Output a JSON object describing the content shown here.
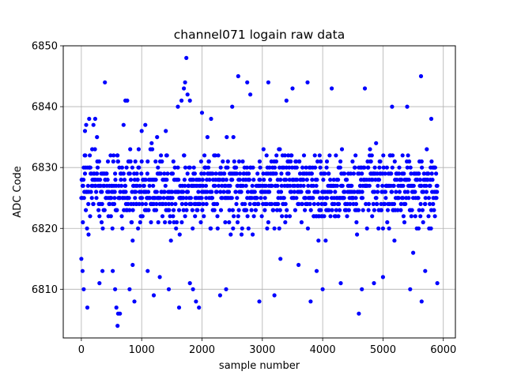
{
  "chart_data": {
    "type": "scatter",
    "title": "channel071 logain raw data",
    "xlabel": "sample number",
    "ylabel": "ADC Code",
    "xlim": [
      -300,
      6200
    ],
    "ylim": [
      6802,
      6850
    ],
    "xticks": [
      0,
      1000,
      2000,
      3000,
      4000,
      5000,
      6000
    ],
    "yticks": [
      6810,
      6820,
      6830,
      6840,
      6850
    ],
    "grid": true,
    "marker_color": "#0000ff",
    "band": {
      "x_start": 0,
      "x_end": 5900,
      "core_low": 6819,
      "core_high": 6834
    },
    "outliers": [
      {
        "x": 0,
        "y": 6815
      },
      {
        "x": 20,
        "y": 6813
      },
      {
        "x": 40,
        "y": 6810
      },
      {
        "x": 60,
        "y": 6836
      },
      {
        "x": 80,
        "y": 6837
      },
      {
        "x": 100,
        "y": 6807
      },
      {
        "x": 130,
        "y": 6838
      },
      {
        "x": 200,
        "y": 6837
      },
      {
        "x": 230,
        "y": 6838
      },
      {
        "x": 260,
        "y": 6835
      },
      {
        "x": 300,
        "y": 6811
      },
      {
        "x": 350,
        "y": 6813
      },
      {
        "x": 390,
        "y": 6844
      },
      {
        "x": 520,
        "y": 6813
      },
      {
        "x": 560,
        "y": 6810
      },
      {
        "x": 580,
        "y": 6807
      },
      {
        "x": 600,
        "y": 6804
      },
      {
        "x": 610,
        "y": 6806
      },
      {
        "x": 640,
        "y": 6806
      },
      {
        "x": 700,
        "y": 6837
      },
      {
        "x": 730,
        "y": 6841
      },
      {
        "x": 760,
        "y": 6841
      },
      {
        "x": 800,
        "y": 6810
      },
      {
        "x": 850,
        "y": 6814
      },
      {
        "x": 880,
        "y": 6808
      },
      {
        "x": 1000,
        "y": 6836
      },
      {
        "x": 1060,
        "y": 6837
      },
      {
        "x": 1100,
        "y": 6813
      },
      {
        "x": 1200,
        "y": 6809
      },
      {
        "x": 1300,
        "y": 6812
      },
      {
        "x": 1400,
        "y": 6836
      },
      {
        "x": 1450,
        "y": 6810
      },
      {
        "x": 1600,
        "y": 6840
      },
      {
        "x": 1620,
        "y": 6807
      },
      {
        "x": 1660,
        "y": 6841
      },
      {
        "x": 1700,
        "y": 6843
      },
      {
        "x": 1720,
        "y": 6844
      },
      {
        "x": 1740,
        "y": 6848
      },
      {
        "x": 1760,
        "y": 6842
      },
      {
        "x": 1800,
        "y": 6841
      },
      {
        "x": 1800,
        "y": 6811
      },
      {
        "x": 1850,
        "y": 6810
      },
      {
        "x": 1900,
        "y": 6808
      },
      {
        "x": 1950,
        "y": 6807
      },
      {
        "x": 2000,
        "y": 6839
      },
      {
        "x": 2150,
        "y": 6838
      },
      {
        "x": 2300,
        "y": 6809
      },
      {
        "x": 2400,
        "y": 6810
      },
      {
        "x": 2500,
        "y": 6840
      },
      {
        "x": 2600,
        "y": 6845
      },
      {
        "x": 2750,
        "y": 6844
      },
      {
        "x": 2800,
        "y": 6842
      },
      {
        "x": 2950,
        "y": 6808
      },
      {
        "x": 3100,
        "y": 6844
      },
      {
        "x": 3200,
        "y": 6809
      },
      {
        "x": 3300,
        "y": 6815
      },
      {
        "x": 3400,
        "y": 6841
      },
      {
        "x": 3500,
        "y": 6843
      },
      {
        "x": 3600,
        "y": 6814
      },
      {
        "x": 3750,
        "y": 6844
      },
      {
        "x": 3800,
        "y": 6808
      },
      {
        "x": 3900,
        "y": 6813
      },
      {
        "x": 4000,
        "y": 6810
      },
      {
        "x": 4150,
        "y": 6843
      },
      {
        "x": 4300,
        "y": 6811
      },
      {
        "x": 4600,
        "y": 6806
      },
      {
        "x": 4650,
        "y": 6810
      },
      {
        "x": 4700,
        "y": 6843
      },
      {
        "x": 4850,
        "y": 6811
      },
      {
        "x": 5000,
        "y": 6812
      },
      {
        "x": 5150,
        "y": 6840
      },
      {
        "x": 5400,
        "y": 6840
      },
      {
        "x": 5450,
        "y": 6810
      },
      {
        "x": 5500,
        "y": 6816
      },
      {
        "x": 5630,
        "y": 6845
      },
      {
        "x": 5640,
        "y": 6808
      },
      {
        "x": 5700,
        "y": 6813
      },
      {
        "x": 5800,
        "y": 6838
      },
      {
        "x": 5900,
        "y": 6811
      }
    ]
  }
}
